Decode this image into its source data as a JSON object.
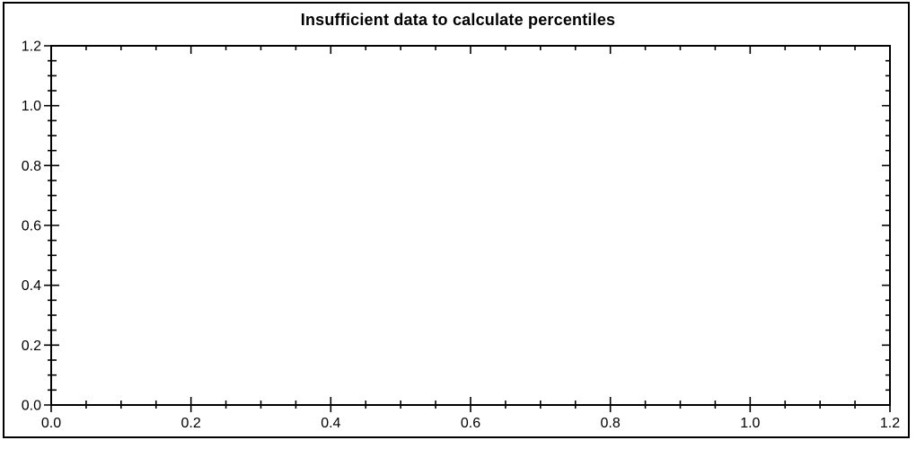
{
  "chart_data": {
    "type": "scatter",
    "title": "Insufficient data to calculate percentiles",
    "series": [],
    "points": [],
    "xlabel": "",
    "ylabel": "",
    "xlim": [
      0,
      1.2
    ],
    "ylim": [
      0,
      1.2
    ],
    "x_tick_labels": [
      "0.0",
      "0.2",
      "0.4",
      "0.6",
      "0.8",
      "1.0",
      "1.2"
    ],
    "y_tick_labels": [
      "0.0",
      "0.2",
      "0.4",
      "0.6",
      "0.8",
      "1.0",
      "1.2"
    ],
    "major_tick_interval": 0.2,
    "minor_tick_interval": 0.05,
    "grid": false,
    "legend": false,
    "frame": "box-with-mirrored-ticks",
    "axis_color": "#000000",
    "text_color": "#000000",
    "background_color": "#ffffff"
  }
}
